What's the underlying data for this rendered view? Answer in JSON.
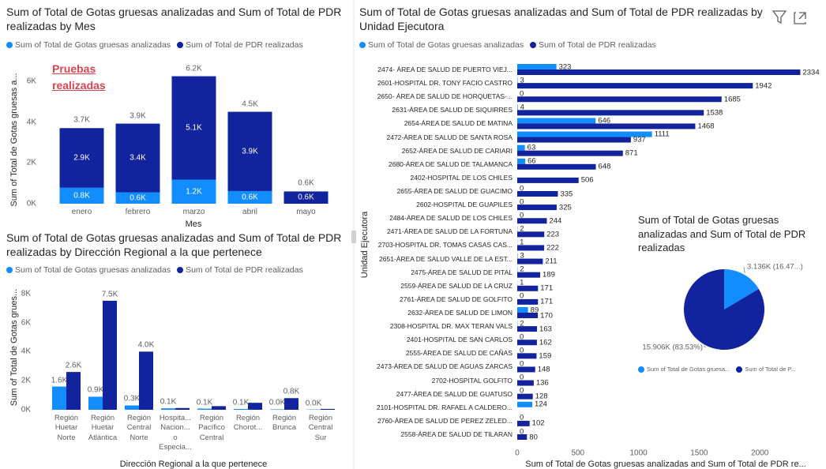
{
  "chart_data": [
    {
      "type": "bar",
      "stacked": true,
      "title": "Sum of Total de Gotas gruesas analizadas and Sum of Total de PDR realizadas by Mes",
      "annotation": "Pruebas realizadas",
      "categories": [
        "enero",
        "febrero",
        "marzo",
        "abril",
        "mayo"
      ],
      "series": [
        {
          "name": "Sum of Total de Gotas gruesas analizadas",
          "color": "#118DFF",
          "values": [
            780,
            560,
            1180,
            620,
            0
          ],
          "value_labels": [
            "0.8K",
            "0.6K",
            "1.2K",
            "0.6K",
            null
          ]
        },
        {
          "name": "Sum of Total de PDR realizadas",
          "color": "#12239E",
          "values": [
            2920,
            3360,
            5060,
            3880,
            600
          ],
          "value_labels": [
            "2.9K",
            "3.4K",
            "5.1K",
            "3.9K",
            "0.6K"
          ]
        }
      ],
      "total_labels": [
        "3.7K",
        "3.9K",
        "6.2K",
        "4.5K",
        "0.6K"
      ],
      "x_label": "Mes",
      "y_label": "Sum of Total de Gotas gruesas a...",
      "ylim": [
        0,
        6300
      ],
      "yticks": [
        {
          "value": 0,
          "label": "0K"
        },
        {
          "value": 2000,
          "label": "2K"
        },
        {
          "value": 4000,
          "label": "4K"
        },
        {
          "value": 6000,
          "label": "6K"
        }
      ],
      "grid": false
    },
    {
      "type": "bar",
      "stacked": false,
      "title": "Sum of Total de Gotas gruesas analizadas and Sum of Total de PDR realizadas by Dirección Regional a la que pertenece",
      "categories": [
        "Región Huetar Norte",
        "Región Huetar Atlántica",
        "Región Central Norte",
        "Hospita... Nacion... o Especia...",
        "Región Pacífico Central",
        "Región Chorot...",
        "Región Brunca",
        "Región Central Sur"
      ],
      "series": [
        {
          "name": "Sum of Total de Gotas gruesas analizadas",
          "color": "#118DFF",
          "values": [
            1600,
            900,
            300,
            100,
            80,
            60,
            30,
            20
          ],
          "value_labels": [
            "1.6K",
            "0.9K",
            "0.3K",
            "0.1K",
            "0.1K",
            "0.1K",
            "0.0K",
            "0.0K"
          ]
        },
        {
          "name": "Sum of Total de PDR realizadas",
          "color": "#12239E",
          "values": [
            2600,
            7500,
            4000,
            120,
            250,
            480,
            800,
            60
          ],
          "value_labels": [
            "2.6K",
            "7.5K",
            "4.0K",
            null,
            null,
            null,
            "0.8K",
            null
          ]
        }
      ],
      "x_label": "Dirección Regional a la que pertenece",
      "y_label": "Sum of Total de Gotas grues...",
      "ylim": [
        0,
        8200
      ],
      "yticks": [
        {
          "value": 0,
          "label": "0K"
        },
        {
          "value": 2000,
          "label": "2K"
        },
        {
          "value": 4000,
          "label": "4K"
        },
        {
          "value": 6000,
          "label": "6K"
        },
        {
          "value": 8000,
          "label": "8K"
        }
      ],
      "grid": false
    },
    {
      "type": "bar",
      "orientation": "horizontal",
      "title": "Sum of Total de Gotas gruesas analizadas and Sum of Total de PDR realizadas by Unidad Ejecutora",
      "categories": [
        "2474- ÁREA DE SALUD DE PUERTO VIEJ...",
        "2601-HOSPITAL DR. TONY FACIO CASTRO",
        "2650- ÁREA DE SALUD DE HORQUETAS-...",
        "2631-ÁREA DE SALUD DE SIQUIRRES",
        "2654-ÁREA DE SALUD DE MATINA",
        "2472-ÁREA DE SALUD DE SANTA ROSA",
        "2652-ÁREA DE SALUD DE CARIARI",
        "2680-ÁREA DE SALUD DE TALAMANCA",
        "2402-HOSPITAL DE LOS CHILES",
        "2655-ÁREA DE SALUD DE GUACIMO",
        "2602-HOSPITAL DE GUAPILES",
        "2484-ÁREA DE SALUD DE LOS CHILES",
        "2471-ÁREA DE SALUD DE LA FORTUNA",
        "2703-HOSPITAL DR. TOMAS CASAS CAS...",
        "2651-ÁREA DE SALUD VALLE DE LA EST...",
        "2475-ÁREA DE SALUD DE PITAL",
        "2559-ÁREA DE SALUD DE LA CRUZ",
        "2761-ÁREA DE SALUD DE GOLFITO",
        "2632-ÁREA DE SALUD DE LIMON",
        "2308-HOSPITAL DR. MAX TERAN VALS",
        "2401-HOSPITAL DE SAN CARLOS",
        "2555-ÁREA DE SALUD DE CAÑAS",
        "2473-ÁREA DE SALUD DE AGUAS ZARCAS",
        "2702-HOSPITAL GOLFITO",
        "2477-ÁREA DE SALUD DE GUATUSO",
        "2101-HOSPITAL DR. RAFAEL A CALDERO...",
        "2760-ÁREA DE SALUD DE PEREZ ZELED...",
        "2558-ÁREA DE SALUD DE TILARAN"
      ],
      "series": [
        {
          "name": "Sum of Total de Gotas gruesas analizadas",
          "color": "#118DFF",
          "values": [
            323,
            3,
            0,
            4,
            646,
            1111,
            63,
            66,
            0,
            0,
            0,
            0,
            2,
            1,
            3,
            2,
            1,
            0,
            89,
            2,
            0,
            0,
            0,
            0,
            0,
            124,
            0,
            0
          ],
          "value_labels": [
            "323",
            "3",
            "0",
            "4",
            "646",
            "1111",
            "63",
            "66",
            null,
            "0",
            "0",
            "0",
            "2",
            "1",
            "3",
            "2",
            "1",
            "0",
            "89",
            "2",
            "0",
            "0",
            "0",
            "0",
            "0",
            "124",
            "0",
            "0"
          ]
        },
        {
          "name": "Sum of Total de PDR realizadas",
          "color": "#12239E",
          "values": [
            2334,
            1942,
            1685,
            1538,
            1468,
            937,
            871,
            648,
            506,
            335,
            325,
            244,
            223,
            222,
            211,
            189,
            171,
            171,
            170,
            163,
            162,
            159,
            148,
            136,
            128,
            0,
            102,
            80
          ],
          "value_labels": [
            "2334",
            "1942",
            "1685",
            "1538",
            "1468",
            "937",
            "871",
            "648",
            "506",
            "335",
            "325",
            "244",
            "223",
            "222",
            "211",
            "189",
            "171",
            "171",
            "170",
            "163",
            "162",
            "159",
            "148",
            "136",
            "128",
            null,
            "102",
            "80"
          ]
        }
      ],
      "x_label": "Sum of Total de Gotas gruesas analizadas and Sum of Total de PDR re...",
      "y_label": "Unidad Ejecutora",
      "xlim": [
        0,
        2370
      ],
      "xticks": [
        0,
        500,
        1000,
        1500,
        2000
      ],
      "grid": false
    },
    {
      "type": "pie",
      "title": "Sum of Total de Gotas gruesas analizadas and Sum of Total de PDR realizadas",
      "categories": [
        "Sum of Total de Gotas gruesa...",
        "Sum of Total de P..."
      ],
      "colors": [
        "#118DFF",
        "#12239E"
      ],
      "values": [
        3136,
        15906
      ],
      "value_labels": [
        "3.136K (16.47...)",
        "15.906K (83.53%)"
      ]
    }
  ]
}
